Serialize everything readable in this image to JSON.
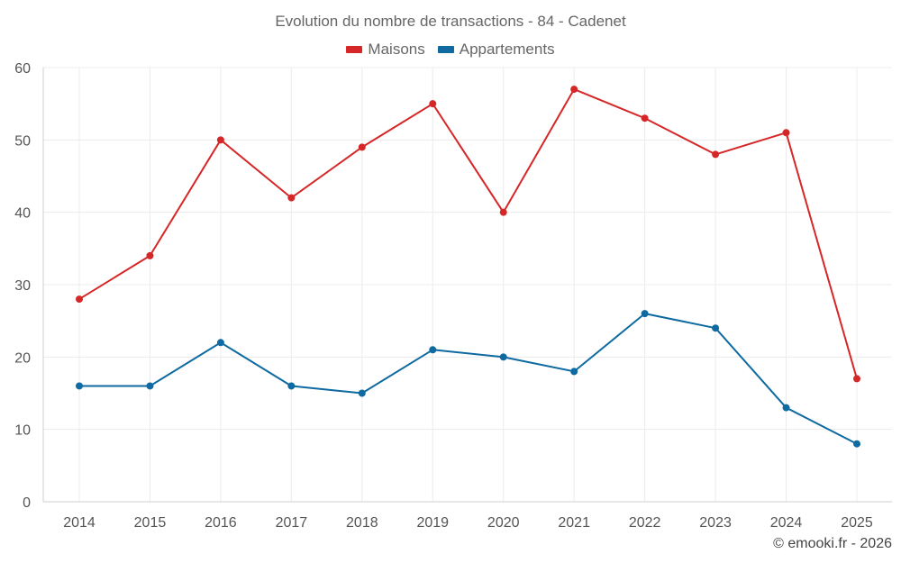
{
  "chart_data": {
    "type": "line",
    "title": "Evolution du nombre de transactions - 84 - Cadenet",
    "categories": [
      "2014",
      "2015",
      "2016",
      "2017",
      "2018",
      "2019",
      "2020",
      "2021",
      "2022",
      "2023",
      "2024",
      "2025"
    ],
    "series": [
      {
        "name": "Maisons",
        "color": "#d62728",
        "values": [
          28,
          34,
          50,
          42,
          49,
          55,
          40,
          57,
          53,
          48,
          51,
          17
        ]
      },
      {
        "name": "Appartements",
        "color": "#0e6aa0",
        "values": [
          16,
          16,
          22,
          16,
          15,
          21,
          20,
          18,
          26,
          24,
          13,
          8
        ]
      }
    ],
    "ylim": [
      0,
      60
    ],
    "yticks": [
      0,
      10,
      20,
      30,
      40,
      50,
      60
    ],
    "grid": true,
    "legend_position": "top-center",
    "xlabel": "",
    "ylabel": ""
  },
  "credit": "© emooki.fr - 2026"
}
